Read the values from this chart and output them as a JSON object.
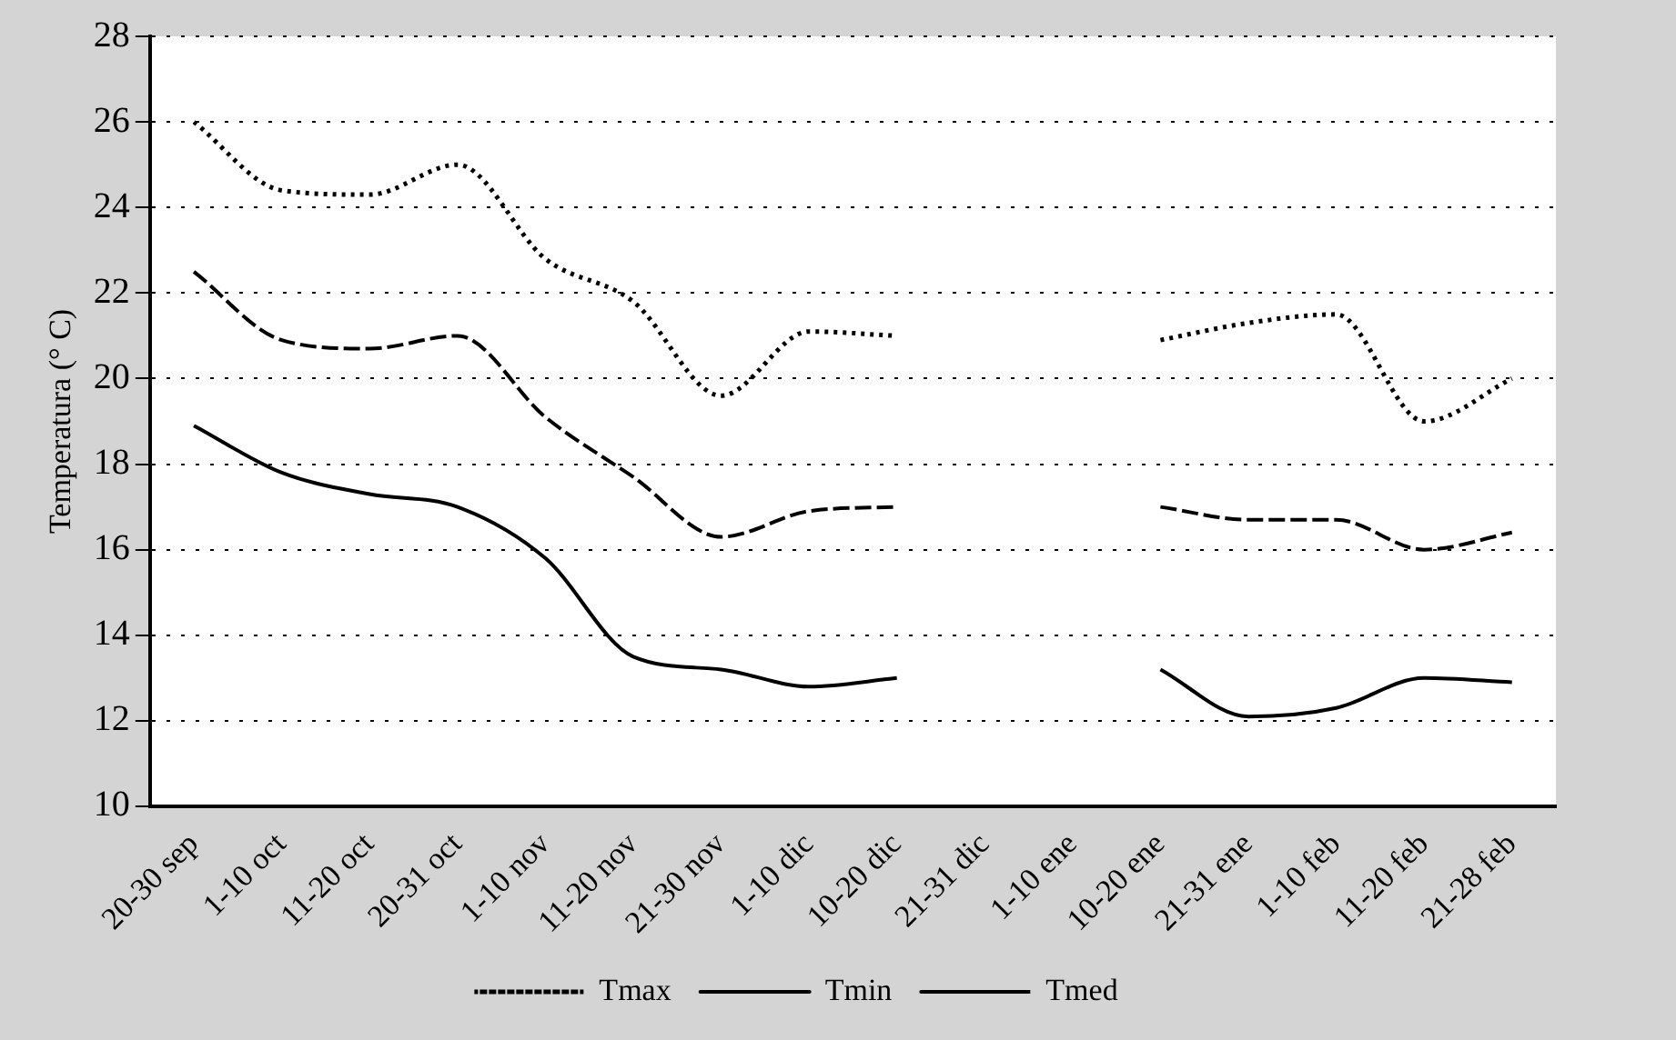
{
  "chart_data": {
    "type": "line",
    "ylabel": "Temperatura (° C)",
    "categories": [
      "20-30 sep",
      "1-10 oct",
      "11-20 oct",
      "20-31 oct",
      "1-10 nov",
      "11-20 nov",
      "21-30 nov",
      "1-10 dic",
      "10-20 dic",
      "21-31 dic",
      "1-10 ene",
      "10-20 ene",
      "21-31 ene",
      "1-10 feb",
      "11-20 feb",
      "21-28 feb"
    ],
    "series": [
      {
        "name": "Tmax",
        "color": "#000000",
        "line_style": "dotted",
        "values": [
          26.0,
          24.4,
          24.3,
          25.0,
          22.8,
          21.8,
          19.6,
          21.1,
          21.0,
          null,
          null,
          20.9,
          21.3,
          21.5,
          19.0,
          20.0
        ]
      },
      {
        "name": "Tmin",
        "color": "#000000",
        "line_style": "solid",
        "values": [
          18.9,
          17.8,
          17.3,
          17.0,
          15.8,
          13.5,
          13.2,
          12.8,
          13.0,
          null,
          null,
          13.2,
          12.1,
          12.3,
          13.0,
          12.9
        ]
      },
      {
        "name": "Tmed",
        "color": "#000000",
        "line_style": "dashed",
        "values": [
          22.5,
          20.9,
          20.7,
          21.0,
          19.1,
          17.7,
          16.3,
          16.9,
          17.0,
          null,
          null,
          17.0,
          16.7,
          16.7,
          16.0,
          16.4
        ]
      }
    ],
    "ylim": [
      10,
      28
    ],
    "yticks": [
      10,
      12,
      14,
      16,
      18,
      20,
      22,
      24,
      26,
      28
    ],
    "grid": "y",
    "legend": "bottom",
    "marker": "none"
  }
}
